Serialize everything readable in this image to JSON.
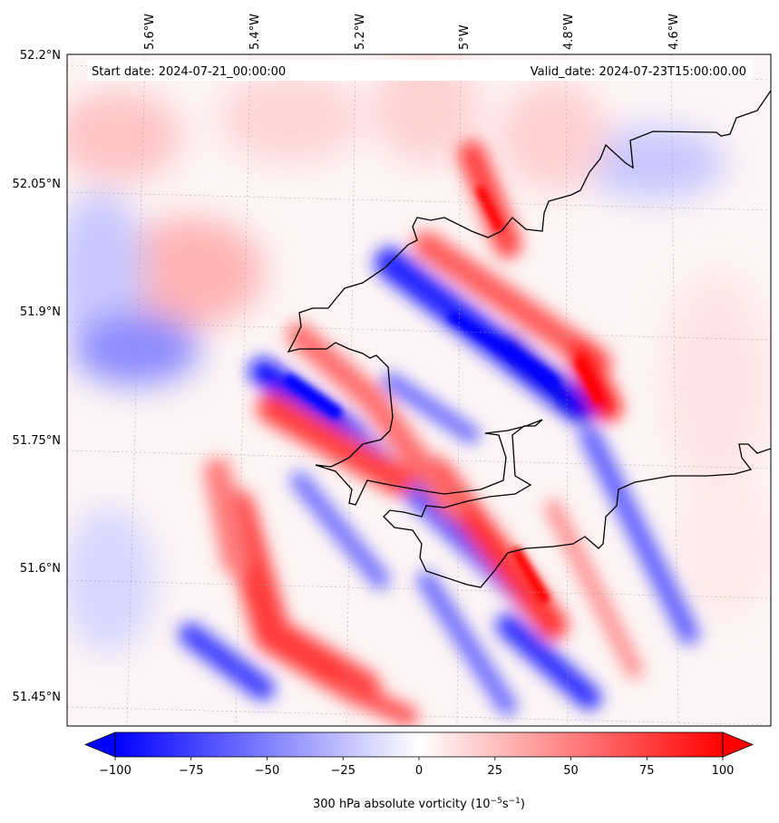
{
  "header": {
    "start_date": "Start date: 2024-07-21_00:00:00",
    "valid_date": "Valid_date: 2024-07-23T15:00:00.00"
  },
  "map": {
    "lon_ticks": [
      "5.6°W",
      "5.4°W",
      "5.2°W",
      "5°W",
      "4.8°W",
      "4.6°W"
    ],
    "lat_ticks": [
      "52.2°N",
      "52.05°N",
      "51.9°N",
      "51.75°N",
      "51.6°N",
      "51.45°N"
    ],
    "field": "300 hPa absolute vorticity",
    "extent": {
      "lon_min": -5.75,
      "lon_max": -4.45,
      "lat_min": 51.42,
      "lat_max": 52.2
    }
  },
  "colorbar": {
    "label_main": "300 hPa absolute vorticity (10",
    "label_exp1": "−5",
    "label_mid": "s",
    "label_exp2": "−1",
    "label_end": ")",
    "ticks": [
      "−100",
      "−75",
      "−50",
      "−25",
      "0",
      "25",
      "50",
      "75",
      "100"
    ],
    "vmin": -100,
    "vmax": 100,
    "cmap": "bwr",
    "colors": {
      "min": "#0000ff",
      "mid": "#ffffff",
      "max": "#ff0000"
    }
  }
}
